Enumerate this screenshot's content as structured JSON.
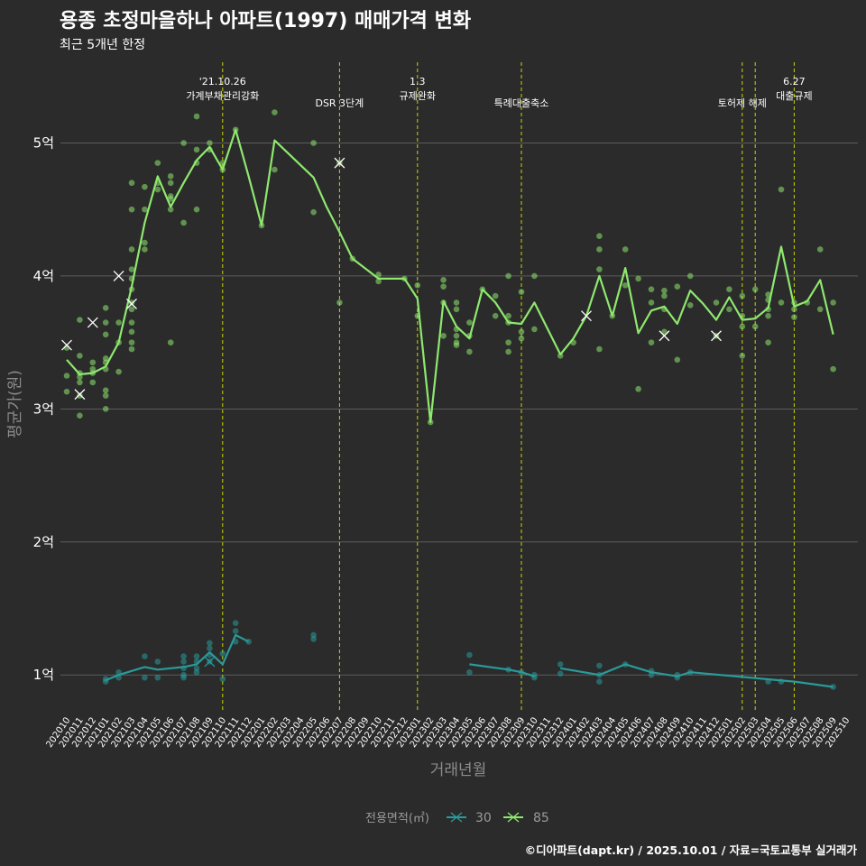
{
  "chart_data": {
    "type": "line",
    "title": "용종 초정마을하나 아파트(1997) 매매가격 변화",
    "subtitle": "최근 5개년 한정",
    "xlabel": "거래년월",
    "ylabel": "평균가(원)",
    "ylim": [
      0.73,
      5.58
    ],
    "yticks": [
      {
        "v": 1,
        "label": "1억"
      },
      {
        "v": 2,
        "label": "2억"
      },
      {
        "v": 3,
        "label": "3억"
      },
      {
        "v": 4,
        "label": "4억"
      },
      {
        "v": 5,
        "label": "5억"
      }
    ],
    "x_labels": [
      "202010",
      "202011",
      "202012",
      "202101",
      "202102",
      "202103",
      "202104",
      "202105",
      "202106",
      "202107",
      "202108",
      "202109",
      "202110",
      "202111",
      "202112",
      "202201",
      "202202",
      "202203",
      "202204",
      "202205",
      "202206",
      "202207",
      "202208",
      "202209",
      "202210",
      "202211",
      "202212",
      "202301",
      "202302",
      "202303",
      "202304",
      "202305",
      "202306",
      "202307",
      "202308",
      "202309",
      "202310",
      "202311",
      "202312",
      "202401",
      "202402",
      "202403",
      "202404",
      "202405",
      "202406",
      "202407",
      "202408",
      "202409",
      "202410",
      "202411",
      "202412",
      "202501",
      "202502",
      "202503",
      "202504",
      "202505",
      "202506",
      "202507",
      "202508",
      "202509",
      "202510"
    ],
    "legend": {
      "title": "전용면적(㎡)",
      "items": [
        {
          "name": "30",
          "color": "#2a9a9a"
        },
        {
          "name": "85",
          "color": "#8ee86e"
        }
      ]
    },
    "events": [
      {
        "index": 12.0,
        "label": "'21.10.26\n가계부채관리강화"
      },
      {
        "index": 21.0,
        "label": "DSR 3단계"
      },
      {
        "index": 27.0,
        "label": "1.3\n규제완화"
      },
      {
        "index": 35.0,
        "label": "특례대출축소"
      },
      {
        "index": 52.0,
        "label": "토허제 해제"
      },
      {
        "index": 53.0,
        "label": ""
      },
      {
        "index": 56.0,
        "label": "6.27\n대출규제"
      }
    ],
    "series": [
      {
        "name": "30",
        "color": "#2a9a9a",
        "line": [
          [
            3,
            0.96
          ],
          [
            4,
            1.0
          ],
          [
            6,
            1.06
          ],
          [
            7,
            1.04
          ],
          [
            9,
            1.06
          ],
          [
            10,
            1.08
          ],
          [
            11,
            1.17
          ],
          [
            12,
            1.08
          ],
          [
            13,
            1.3
          ],
          [
            14,
            1.25
          ],
          [
            null,
            null
          ],
          [
            31,
            1.08
          ],
          [
            34,
            1.04
          ],
          [
            35,
            1.02
          ],
          [
            36,
            0.99
          ],
          [
            null,
            null
          ],
          [
            38,
            1.05
          ],
          [
            41,
            1.0
          ],
          [
            43,
            1.08
          ],
          [
            45,
            1.02
          ],
          [
            47,
            0.99
          ],
          [
            48,
            1.02
          ],
          [
            56,
            0.95
          ],
          [
            59,
            0.91
          ]
        ],
        "points": [
          [
            3,
            0.95
          ],
          [
            3,
            0.97
          ],
          [
            4,
            0.98
          ],
          [
            4,
            1.02
          ],
          [
            6,
            1.14
          ],
          [
            6,
            0.98
          ],
          [
            7,
            1.1
          ],
          [
            7,
            0.98
          ],
          [
            9,
            1.14
          ],
          [
            9,
            1.1
          ],
          [
            9,
            1.05
          ],
          [
            9,
            1.0
          ],
          [
            9,
            0.98
          ],
          [
            10,
            1.14
          ],
          [
            10,
            1.1
          ],
          [
            10,
            1.05
          ],
          [
            10,
            1.02
          ],
          [
            11,
            1.24
          ],
          [
            11,
            1.2
          ],
          [
            11,
            1.15
          ],
          [
            11,
            1.1
          ],
          [
            12,
            1.16
          ],
          [
            12,
            0.97
          ],
          [
            13,
            1.39
          ],
          [
            13,
            1.33
          ],
          [
            13,
            1.25
          ],
          [
            14,
            1.25
          ],
          [
            19,
            1.3
          ],
          [
            19,
            1.27
          ],
          [
            31,
            1.15
          ],
          [
            31,
            1.02
          ],
          [
            34,
            1.04
          ],
          [
            35,
            1.02
          ],
          [
            36,
            1.0
          ],
          [
            36,
            0.98
          ],
          [
            38,
            1.08
          ],
          [
            38,
            1.01
          ],
          [
            41,
            1.07
          ],
          [
            41,
            1.0
          ],
          [
            41,
            0.95
          ],
          [
            43,
            1.08
          ],
          [
            45,
            1.03
          ],
          [
            45,
            1.0
          ],
          [
            47,
            1.0
          ],
          [
            47,
            0.98
          ],
          [
            48,
            1.02
          ],
          [
            54,
            0.95
          ],
          [
            55,
            0.95
          ],
          [
            59,
            0.91
          ]
        ],
        "marks": [
          [
            11,
            1.1
          ]
        ]
      },
      {
        "name": "85",
        "color": "#8ee86e",
        "line": [
          [
            0,
            3.37
          ],
          [
            1,
            3.26
          ],
          [
            2,
            3.27
          ],
          [
            3,
            3.32
          ],
          [
            4,
            3.5
          ],
          [
            5,
            3.92
          ],
          [
            6,
            4.4
          ],
          [
            7,
            4.75
          ],
          [
            8,
            4.52
          ],
          [
            9,
            4.7
          ],
          [
            10,
            4.87
          ],
          [
            11,
            4.97
          ],
          [
            12,
            4.8
          ],
          [
            13,
            5.1
          ],
          [
            14,
            4.75
          ],
          [
            15,
            4.38
          ],
          [
            16,
            5.02
          ],
          [
            19,
            4.74
          ],
          [
            20,
            4.52
          ],
          [
            21,
            4.33
          ],
          [
            22,
            4.13
          ],
          [
            24,
            3.98
          ],
          [
            26,
            3.98
          ],
          [
            27,
            3.83
          ],
          [
            28,
            2.9
          ],
          [
            29,
            3.81
          ],
          [
            30,
            3.62
          ],
          [
            31,
            3.53
          ],
          [
            32,
            3.9
          ],
          [
            33,
            3.8
          ],
          [
            34,
            3.65
          ],
          [
            35,
            3.64
          ],
          [
            36,
            3.8
          ],
          [
            38,
            3.41
          ],
          [
            39,
            3.53
          ],
          [
            40,
            3.7
          ],
          [
            41,
            4.0
          ],
          [
            42,
            3.7
          ],
          [
            43,
            4.06
          ],
          [
            44,
            3.57
          ],
          [
            45,
            3.74
          ],
          [
            46,
            3.77
          ],
          [
            47,
            3.64
          ],
          [
            48,
            3.89
          ],
          [
            49,
            3.79
          ],
          [
            50,
            3.67
          ],
          [
            51,
            3.84
          ],
          [
            52,
            3.67
          ],
          [
            53,
            3.68
          ],
          [
            54,
            3.76
          ],
          [
            55,
            4.22
          ],
          [
            56,
            3.77
          ],
          [
            57,
            3.81
          ],
          [
            58,
            3.97
          ],
          [
            59,
            3.56
          ]
        ],
        "points": [
          [
            0,
            3.46
          ],
          [
            0,
            3.25
          ],
          [
            0,
            3.13
          ],
          [
            1,
            3.67
          ],
          [
            1,
            3.4
          ],
          [
            1,
            3.27
          ],
          [
            1,
            3.24
          ],
          [
            1,
            3.2
          ],
          [
            1,
            3.1
          ],
          [
            1,
            2.95
          ],
          [
            2,
            3.35
          ],
          [
            2,
            3.3
          ],
          [
            2,
            3.27
          ],
          [
            2,
            3.2
          ],
          [
            3,
            3.76
          ],
          [
            3,
            3.65
          ],
          [
            3,
            3.56
          ],
          [
            3,
            3.38
          ],
          [
            3,
            3.35
          ],
          [
            3,
            3.3
          ],
          [
            3,
            3.14
          ],
          [
            3,
            3.1
          ],
          [
            3,
            3.0
          ],
          [
            4,
            3.65
          ],
          [
            4,
            3.5
          ],
          [
            4,
            3.28
          ],
          [
            5,
            4.7
          ],
          [
            5,
            4.5
          ],
          [
            5,
            4.2
          ],
          [
            5,
            4.05
          ],
          [
            5,
            3.98
          ],
          [
            5,
            3.9
          ],
          [
            5,
            3.8
          ],
          [
            5,
            3.75
          ],
          [
            5,
            3.65
          ],
          [
            5,
            3.58
          ],
          [
            5,
            3.5
          ],
          [
            5,
            3.45
          ],
          [
            6,
            4.67
          ],
          [
            6,
            4.5
          ],
          [
            6,
            4.25
          ],
          [
            6,
            4.2
          ],
          [
            7,
            4.85
          ],
          [
            7,
            4.7
          ],
          [
            7,
            4.65
          ],
          [
            8,
            4.75
          ],
          [
            8,
            4.7
          ],
          [
            8,
            4.6
          ],
          [
            8,
            4.58
          ],
          [
            8,
            4.5
          ],
          [
            8,
            3.5
          ],
          [
            9,
            5.0
          ],
          [
            9,
            4.4
          ],
          [
            10,
            5.2
          ],
          [
            10,
            4.95
          ],
          [
            10,
            4.85
          ],
          [
            10,
            4.5
          ],
          [
            11,
            5.0
          ],
          [
            11,
            4.95
          ],
          [
            12,
            4.85
          ],
          [
            12,
            4.8
          ],
          [
            13,
            5.1
          ],
          [
            15,
            4.38
          ],
          [
            16,
            5.23
          ],
          [
            16,
            4.8
          ],
          [
            19,
            5.0
          ],
          [
            19,
            4.48
          ],
          [
            21,
            4.85
          ],
          [
            21,
            3.8
          ],
          [
            22,
            4.13
          ],
          [
            24,
            4.01
          ],
          [
            24,
            3.96
          ],
          [
            26,
            3.98
          ],
          [
            27,
            3.93
          ],
          [
            27,
            3.7
          ],
          [
            28,
            2.9
          ],
          [
            29,
            3.97
          ],
          [
            29,
            3.92
          ],
          [
            29,
            3.8
          ],
          [
            29,
            3.55
          ],
          [
            30,
            3.8
          ],
          [
            30,
            3.75
          ],
          [
            30,
            3.6
          ],
          [
            30,
            3.55
          ],
          [
            30,
            3.5
          ],
          [
            30,
            3.48
          ],
          [
            31,
            3.65
          ],
          [
            31,
            3.55
          ],
          [
            31,
            3.43
          ],
          [
            32,
            3.9
          ],
          [
            33,
            3.85
          ],
          [
            33,
            3.7
          ],
          [
            34,
            4.0
          ],
          [
            34,
            3.7
          ],
          [
            34,
            3.65
          ],
          [
            34,
            3.5
          ],
          [
            34,
            3.43
          ],
          [
            35,
            3.88
          ],
          [
            35,
            3.58
          ],
          [
            35,
            3.53
          ],
          [
            36,
            4.0
          ],
          [
            36,
            3.6
          ],
          [
            38,
            3.4
          ],
          [
            39,
            3.5
          ],
          [
            41,
            4.3
          ],
          [
            41,
            4.2
          ],
          [
            41,
            4.05
          ],
          [
            41,
            3.45
          ],
          [
            42,
            3.7
          ],
          [
            43,
            4.2
          ],
          [
            43,
            3.93
          ],
          [
            44,
            3.98
          ],
          [
            44,
            3.15
          ],
          [
            45,
            3.9
          ],
          [
            45,
            3.8
          ],
          [
            45,
            3.5
          ],
          [
            46,
            3.89
          ],
          [
            46,
            3.85
          ],
          [
            46,
            3.75
          ],
          [
            46,
            3.58
          ],
          [
            47,
            3.92
          ],
          [
            47,
            3.37
          ],
          [
            48,
            4.0
          ],
          [
            48,
            3.78
          ],
          [
            50,
            3.8
          ],
          [
            50,
            3.55
          ],
          [
            51,
            3.9
          ],
          [
            51,
            3.75
          ],
          [
            52,
            3.85
          ],
          [
            52,
            3.7
          ],
          [
            52,
            3.62
          ],
          [
            52,
            3.4
          ],
          [
            53,
            3.9
          ],
          [
            53,
            3.62
          ],
          [
            54,
            3.86
          ],
          [
            54,
            3.82
          ],
          [
            54,
            3.75
          ],
          [
            54,
            3.7
          ],
          [
            54,
            3.5
          ],
          [
            55,
            4.65
          ],
          [
            55,
            3.8
          ],
          [
            56,
            3.8
          ],
          [
            56,
            3.75
          ],
          [
            56,
            3.69
          ],
          [
            57,
            3.8
          ],
          [
            58,
            4.2
          ],
          [
            58,
            3.75
          ],
          [
            59,
            3.8
          ],
          [
            59,
            3.3
          ]
        ],
        "marks": [
          [
            0,
            3.48
          ],
          [
            1,
            3.11
          ],
          [
            2,
            3.65
          ],
          [
            4,
            4.0
          ],
          [
            5,
            3.79
          ],
          [
            21,
            4.85
          ],
          [
            40,
            3.7
          ],
          [
            46,
            3.55
          ],
          [
            50,
            3.55
          ]
        ]
      }
    ],
    "caption": "©디아파트(dapt.kr) / 2025.10.01 / 자료=국토교통부 실거래가"
  }
}
